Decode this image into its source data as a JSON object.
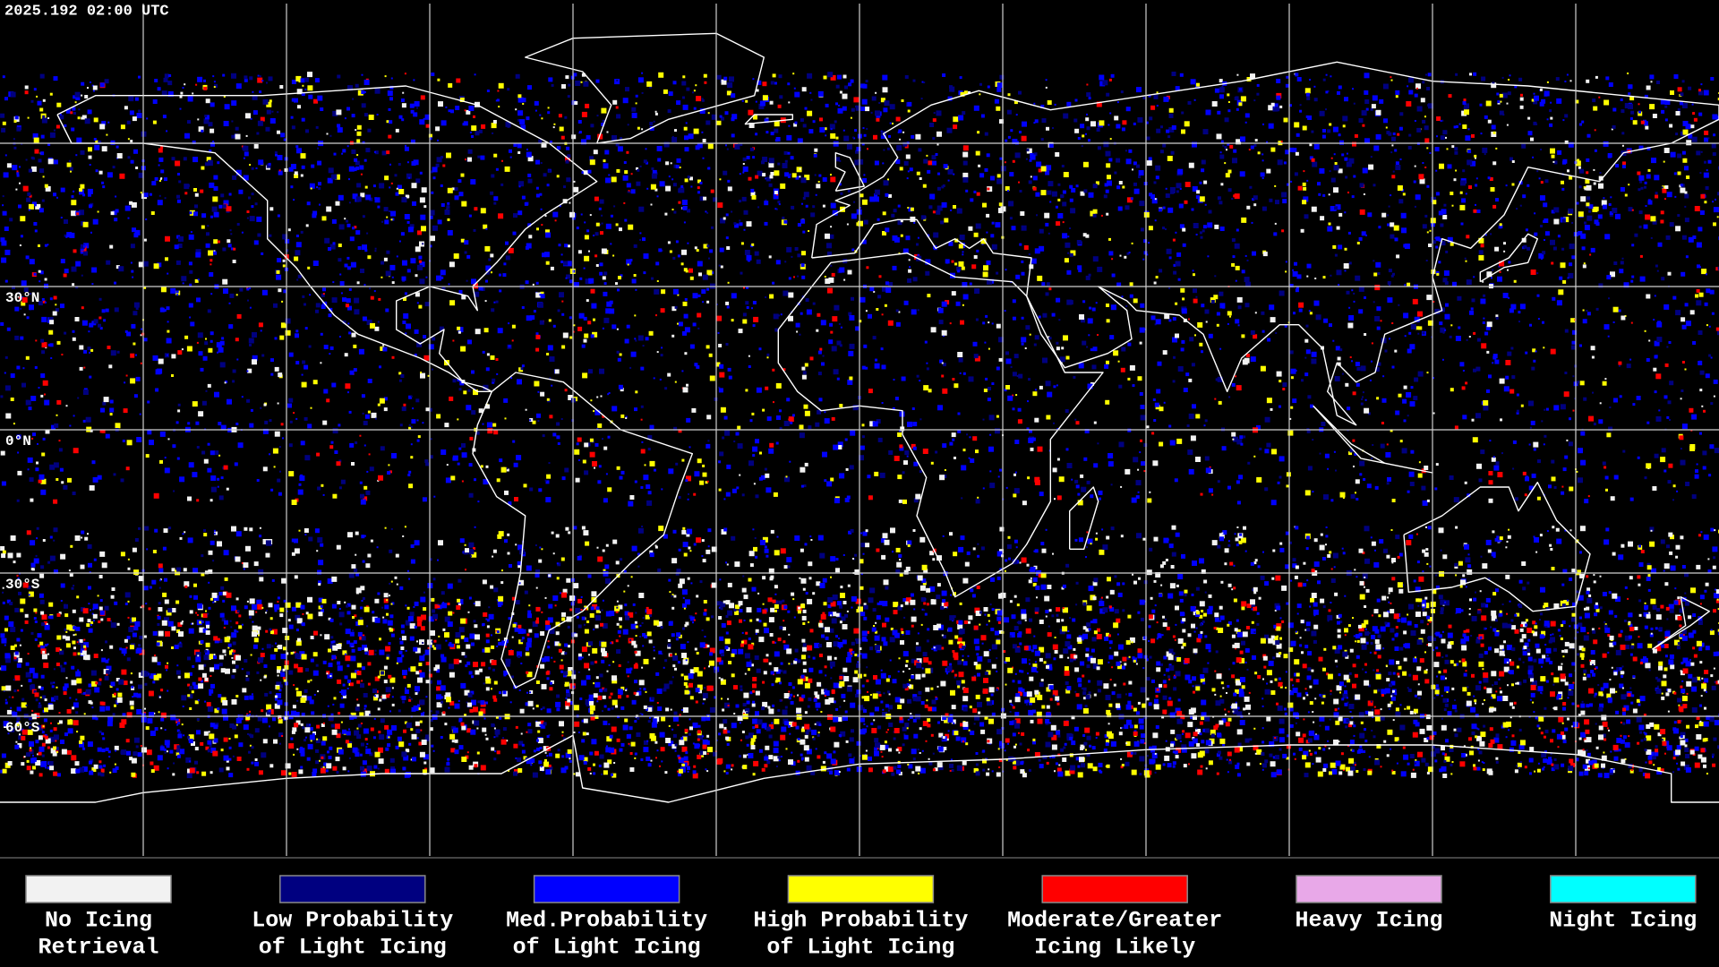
{
  "header": {
    "timestamp": "2025.192 02:00 UTC"
  },
  "map": {
    "lat_labels": [
      "30°N",
      "0°N",
      "30°S",
      "60°S"
    ]
  },
  "legend": {
    "items": [
      {
        "label": [
          "No Icing",
          "Retrieval"
        ],
        "color": "#f2f2f2"
      },
      {
        "label": [
          "Low Probability",
          "of Light Icing"
        ],
        "color": "#000080"
      },
      {
        "label": [
          "Med.Probability",
          "of Light Icing"
        ],
        "color": "#0000ff"
      },
      {
        "label": [
          "High Probability",
          "of Light Icing"
        ],
        "color": "#ffff00"
      },
      {
        "label": [
          "Moderate/Greater",
          "Icing Likely"
        ],
        "color": "#ff0000"
      },
      {
        "label": [
          "Heavy Icing"
        ],
        "color": "#e8a8e8"
      },
      {
        "label": [
          "Night Icing"
        ],
        "color": "#00ffff"
      }
    ]
  }
}
